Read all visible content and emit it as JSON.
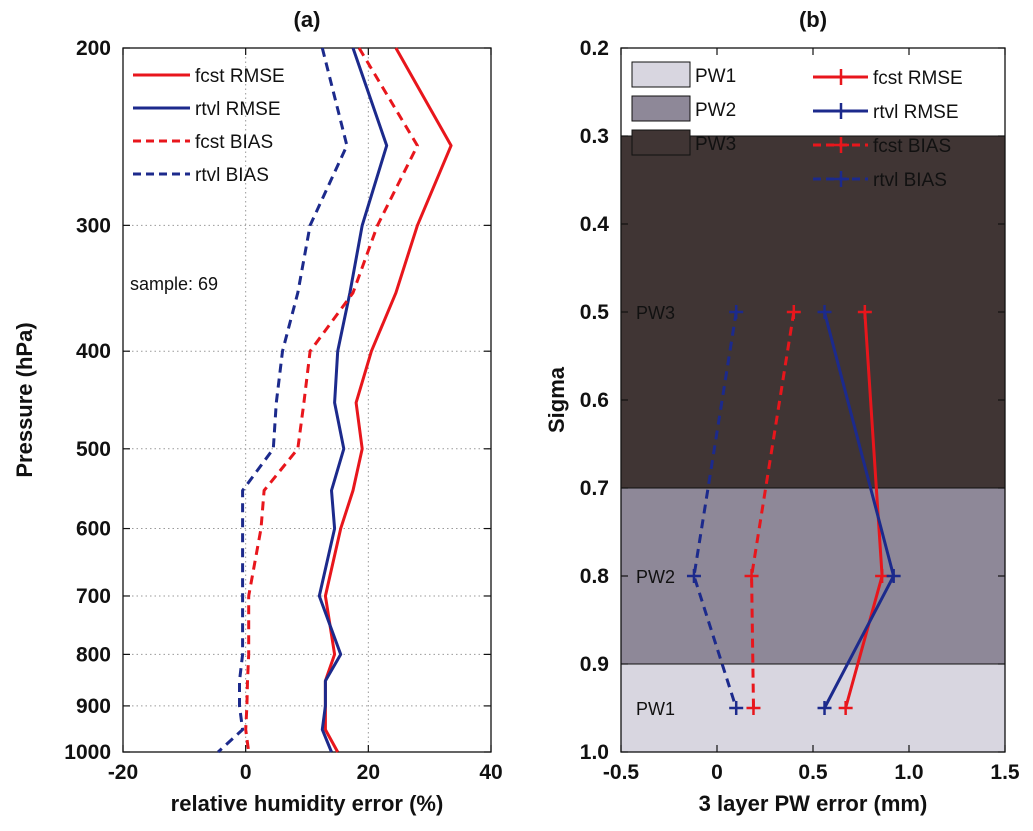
{
  "figure": {
    "panel_titles": [
      "(a)",
      "(b)"
    ]
  },
  "chart_data": [
    {
      "type": "line",
      "title": "(a)",
      "xlabel": "relative humidity error (%)",
      "ylabel": "Pressure (hPa)",
      "xlim": [
        -20,
        40
      ],
      "ylim": [
        200,
        1000
      ],
      "y_scale": "log",
      "y_reversed": true,
      "xticks": [
        -20,
        0,
        20,
        40
      ],
      "yticks": [
        200,
        300,
        400,
        500,
        600,
        700,
        800,
        900,
        1000
      ],
      "grid": true,
      "legend_position": "top-left",
      "annotation": "sample:  69",
      "series": [
        {
          "name": "fcst RMSE",
          "color": "#e8161c",
          "dash": "solid",
          "x": [
            24.5,
            33.5,
            28.0,
            24.5,
            20.5,
            18.0,
            19.0,
            17.5,
            15.5,
            13.0,
            14.5,
            13.0,
            13.0,
            13.0,
            15.0
          ],
          "y": [
            200,
            250,
            300,
            350,
            400,
            450,
            500,
            550,
            600,
            700,
            800,
            850,
            900,
            950,
            1000
          ]
        },
        {
          "name": "rtvl RMSE",
          "color": "#1c2a8c",
          "dash": "solid",
          "x": [
            17.5,
            23.0,
            19.0,
            17.0,
            15.0,
            14.5,
            16.0,
            14.0,
            14.5,
            12.0,
            15.5,
            13.0,
            13.0,
            12.5,
            14.0
          ],
          "y": [
            200,
            250,
            300,
            350,
            400,
            450,
            500,
            550,
            600,
            700,
            800,
            850,
            900,
            950,
            1000
          ]
        },
        {
          "name": "fcst BIAS",
          "color": "#e8161c",
          "dash": "dashed",
          "x": [
            18.5,
            28.0,
            21.5,
            17.5,
            10.5,
            9.5,
            8.5,
            3.0,
            2.5,
            0.5,
            0.5,
            0.3,
            0.2,
            0.0,
            0.5
          ],
          "y": [
            200,
            250,
            300,
            350,
            400,
            450,
            500,
            550,
            600,
            700,
            800,
            850,
            900,
            950,
            1000
          ]
        },
        {
          "name": "rtvl BIAS",
          "color": "#1c2a8c",
          "dash": "dashed",
          "x": [
            12.5,
            16.5,
            10.5,
            8.5,
            6.0,
            5.0,
            4.5,
            -0.5,
            -0.5,
            -0.5,
            -0.5,
            -1.0,
            -1.0,
            -0.5,
            -4.5
          ],
          "y": [
            200,
            250,
            300,
            350,
            400,
            450,
            500,
            550,
            600,
            700,
            800,
            850,
            900,
            950,
            1000
          ]
        }
      ]
    },
    {
      "type": "line",
      "title": "(b)",
      "xlabel": "3 layer PW error (mm)",
      "ylabel": "Sigma",
      "xlim": [
        -0.5,
        1.5
      ],
      "ylim": [
        0.2,
        1.0
      ],
      "y_reversed": true,
      "xticks": [
        -0.5,
        0,
        0.5,
        1.0,
        1.5
      ],
      "xtick_labels": [
        "-0.5",
        "0",
        "0.5",
        "1.0",
        "1.5"
      ],
      "yticks": [
        0.2,
        0.3,
        0.4,
        0.5,
        0.6,
        0.7,
        0.8,
        0.9,
        1.0
      ],
      "ytick_labels": [
        "0.2",
        "0.3",
        "0.4",
        "0.5",
        "0.6",
        "0.7",
        "0.8",
        "0.9",
        "1.0"
      ],
      "grid": false,
      "legend_position": "top",
      "layers": [
        {
          "name": "PW3",
          "label": "PW3",
          "from": 0.3,
          "to": 0.7,
          "label_at": 0.5,
          "color": "#403534"
        },
        {
          "name": "PW2",
          "label": "PW2",
          "from": 0.7,
          "to": 0.9,
          "label_at": 0.8,
          "color": "#8e8898"
        },
        {
          "name": "PW1",
          "label": "PW1",
          "from": 0.9,
          "to": 1.0,
          "label_at": 0.95,
          "color": "#d8d6e0"
        }
      ],
      "series": [
        {
          "name": "fcst RMSE",
          "color": "#e8161c",
          "dash": "solid",
          "marker": "+",
          "x": [
            0.77,
            0.86,
            0.67
          ],
          "y": [
            0.5,
            0.8,
            0.95
          ]
        },
        {
          "name": "rtvl RMSE",
          "color": "#1c2a8c",
          "dash": "solid",
          "marker": "+",
          "x": [
            0.56,
            0.92,
            0.56
          ],
          "y": [
            0.5,
            0.8,
            0.95
          ]
        },
        {
          "name": "fcst BIAS",
          "color": "#e8161c",
          "dash": "dashed",
          "marker": "+",
          "x": [
            0.4,
            0.18,
            0.19
          ],
          "y": [
            0.5,
            0.8,
            0.95
          ]
        },
        {
          "name": "rtvl BIAS",
          "color": "#1c2a8c",
          "dash": "dashed",
          "marker": "+",
          "x": [
            0.1,
            -0.12,
            0.1
          ],
          "y": [
            0.5,
            0.8,
            0.95
          ]
        }
      ]
    }
  ]
}
